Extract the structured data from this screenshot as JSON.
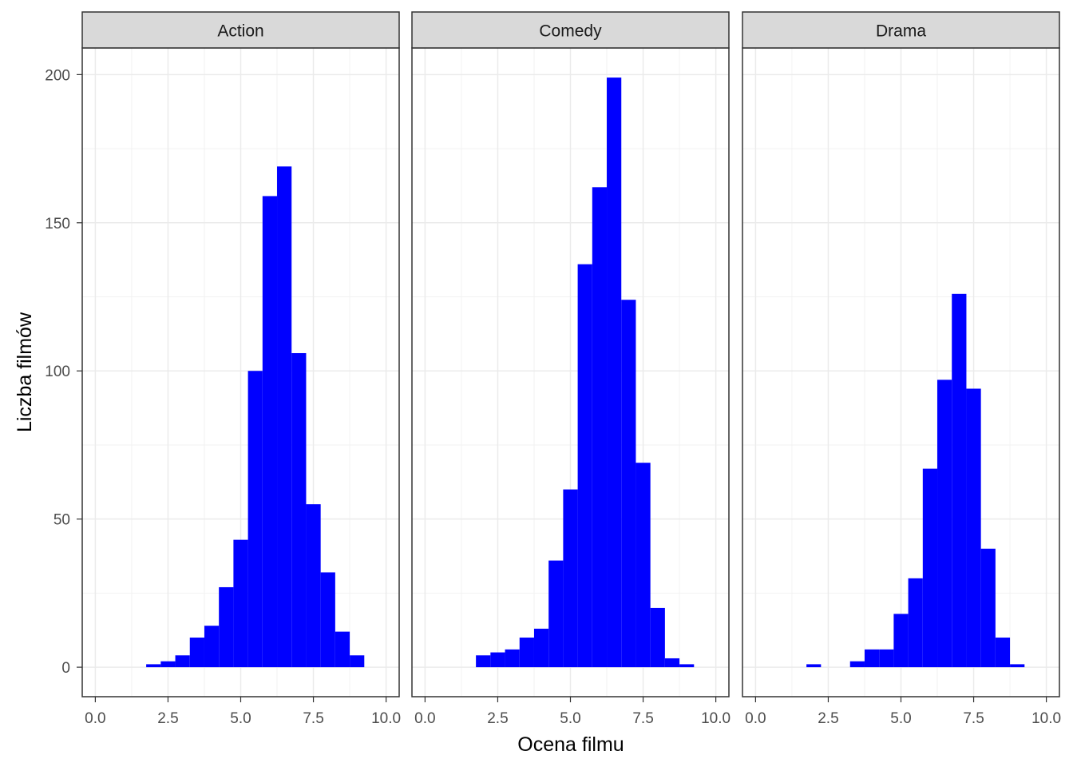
{
  "chart_data": {
    "type": "bar",
    "subtype": "faceted-histogram",
    "xlabel": "Ocena filmu",
    "ylabel": "Liczba filmów",
    "xlim": [
      -0.45,
      10.45
    ],
    "ylim": [
      -9.95,
      209.0
    ],
    "x_ticks": [
      0,
      2.5,
      5,
      7.5,
      10
    ],
    "x_tick_labels": [
      "0.0",
      "2.5",
      "5.0",
      "7.5",
      "10.0"
    ],
    "y_ticks": [
      0,
      50,
      100,
      150,
      200
    ],
    "y_tick_labels": [
      "0",
      "50",
      "100",
      "150",
      "200"
    ],
    "bin_width": 0.5,
    "grid": true,
    "bar_color": "#0000ff",
    "facets": [
      {
        "name": "Action",
        "bins": [
          {
            "x": 2.0,
            "y": 1
          },
          {
            "x": 2.5,
            "y": 2
          },
          {
            "x": 3.0,
            "y": 4
          },
          {
            "x": 3.5,
            "y": 10
          },
          {
            "x": 4.0,
            "y": 14
          },
          {
            "x": 4.5,
            "y": 27
          },
          {
            "x": 5.0,
            "y": 43
          },
          {
            "x": 5.5,
            "y": 100
          },
          {
            "x": 6.0,
            "y": 159
          },
          {
            "x": 6.5,
            "y": 169
          },
          {
            "x": 7.0,
            "y": 106
          },
          {
            "x": 7.5,
            "y": 55
          },
          {
            "x": 8.0,
            "y": 32
          },
          {
            "x": 8.5,
            "y": 12
          },
          {
            "x": 9.0,
            "y": 4
          }
        ]
      },
      {
        "name": "Comedy",
        "bins": [
          {
            "x": 2.0,
            "y": 4
          },
          {
            "x": 2.5,
            "y": 5
          },
          {
            "x": 3.0,
            "y": 6
          },
          {
            "x": 3.5,
            "y": 10
          },
          {
            "x": 4.0,
            "y": 13
          },
          {
            "x": 4.5,
            "y": 36
          },
          {
            "x": 5.0,
            "y": 60
          },
          {
            "x": 5.5,
            "y": 136
          },
          {
            "x": 6.0,
            "y": 162
          },
          {
            "x": 6.5,
            "y": 199
          },
          {
            "x": 7.0,
            "y": 124
          },
          {
            "x": 7.5,
            "y": 69
          },
          {
            "x": 8.0,
            "y": 20
          },
          {
            "x": 8.5,
            "y": 3
          },
          {
            "x": 9.0,
            "y": 1
          }
        ]
      },
      {
        "name": "Drama",
        "bins": [
          {
            "x": 2.0,
            "y": 1
          },
          {
            "x": 2.5,
            "y": 0
          },
          {
            "x": 3.0,
            "y": 0
          },
          {
            "x": 3.5,
            "y": 2
          },
          {
            "x": 4.0,
            "y": 6
          },
          {
            "x": 4.5,
            "y": 6
          },
          {
            "x": 5.0,
            "y": 18
          },
          {
            "x": 5.5,
            "y": 30
          },
          {
            "x": 6.0,
            "y": 67
          },
          {
            "x": 6.5,
            "y": 97
          },
          {
            "x": 7.0,
            "y": 126
          },
          {
            "x": 7.5,
            "y": 94
          },
          {
            "x": 8.0,
            "y": 40
          },
          {
            "x": 8.5,
            "y": 10
          },
          {
            "x": 9.0,
            "y": 1
          }
        ]
      }
    ]
  }
}
